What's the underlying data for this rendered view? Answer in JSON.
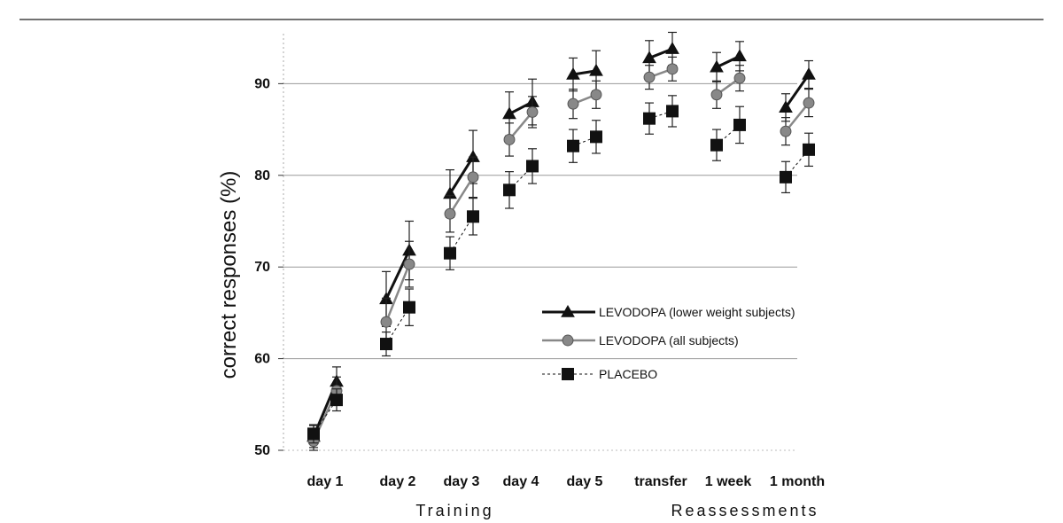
{
  "colors": {
    "lower_weight": "#111111",
    "all_subjects": "#888888",
    "placebo": "#111111",
    "grid": "#999999",
    "top_rule": "#444444"
  },
  "chart_data": {
    "type": "line",
    "ylabel": "correct responses (%)",
    "xlabel": "",
    "ylim": [
      50,
      97
    ],
    "y_ticks": [
      50,
      60,
      70,
      80,
      90
    ],
    "grid": true,
    "legend_position": "center-right",
    "categories": [
      "day 1",
      "day 2",
      "day 3",
      "day 4",
      "day 5",
      "transfer",
      "1 week",
      "1 month"
    ],
    "groups": [
      {
        "label": "Training",
        "from": 0,
        "to": 4
      },
      {
        "label": "Reassessments",
        "from": 5,
        "to": 7
      }
    ],
    "series": [
      {
        "name": "LEVODOPA (lower weight subjects)",
        "marker": "triangle",
        "color_key": "lower_weight",
        "points": [
          {
            "cat": 0,
            "pos": "a",
            "y": 51.5,
            "err": 1.2
          },
          {
            "cat": 0,
            "pos": "b",
            "y": 57.5,
            "err": 1.6
          },
          {
            "cat": 1,
            "pos": "a",
            "y": 66.5,
            "err": 3.0
          },
          {
            "cat": 1,
            "pos": "b",
            "y": 71.8,
            "err": 3.2
          },
          {
            "cat": 2,
            "pos": "a",
            "y": 78.0,
            "err": 2.6
          },
          {
            "cat": 2,
            "pos": "b",
            "y": 82.0,
            "err": 2.9
          },
          {
            "cat": 3,
            "pos": "a",
            "y": 86.7,
            "err": 2.4
          },
          {
            "cat": 3,
            "pos": "b",
            "y": 88.0,
            "err": 2.5
          },
          {
            "cat": 4,
            "pos": "a",
            "y": 91.0,
            "err": 1.8
          },
          {
            "cat": 4,
            "pos": "b",
            "y": 91.4,
            "err": 2.2
          },
          {
            "cat": 5,
            "pos": "a",
            "y": 92.8,
            "err": 1.9
          },
          {
            "cat": 5,
            "pos": "b",
            "y": 93.8,
            "err": 1.8
          },
          {
            "cat": 6,
            "pos": "a",
            "y": 91.8,
            "err": 1.6
          },
          {
            "cat": 6,
            "pos": "b",
            "y": 93.0,
            "err": 1.6
          },
          {
            "cat": 7,
            "pos": "a",
            "y": 87.4,
            "err": 1.5
          },
          {
            "cat": 7,
            "pos": "b",
            "y": 91.0,
            "err": 1.5
          }
        ]
      },
      {
        "name": "LEVODOPA (all subjects)",
        "marker": "circle",
        "color_key": "all_subjects",
        "points": [
          {
            "cat": 0,
            "pos": "a",
            "y": 51.0,
            "err": 1.0
          },
          {
            "cat": 0,
            "pos": "b",
            "y": 56.5,
            "err": 1.5
          },
          {
            "cat": 1,
            "pos": "a",
            "y": 64.0,
            "err": 2.6
          },
          {
            "cat": 1,
            "pos": "b",
            "y": 70.3,
            "err": 2.5
          },
          {
            "cat": 2,
            "pos": "a",
            "y": 75.8,
            "err": 2.0
          },
          {
            "cat": 2,
            "pos": "b",
            "y": 79.8,
            "err": 2.2
          },
          {
            "cat": 3,
            "pos": "a",
            "y": 83.9,
            "err": 1.8
          },
          {
            "cat": 3,
            "pos": "b",
            "y": 86.9,
            "err": 1.7
          },
          {
            "cat": 4,
            "pos": "a",
            "y": 87.8,
            "err": 1.6
          },
          {
            "cat": 4,
            "pos": "b",
            "y": 88.8,
            "err": 1.5
          },
          {
            "cat": 5,
            "pos": "a",
            "y": 90.7,
            "err": 1.3
          },
          {
            "cat": 5,
            "pos": "b",
            "y": 91.6,
            "err": 1.3
          },
          {
            "cat": 6,
            "pos": "a",
            "y": 88.8,
            "err": 1.5
          },
          {
            "cat": 6,
            "pos": "b",
            "y": 90.6,
            "err": 1.4
          },
          {
            "cat": 7,
            "pos": "a",
            "y": 84.8,
            "err": 1.5
          },
          {
            "cat": 7,
            "pos": "b",
            "y": 87.9,
            "err": 1.5
          }
        ]
      },
      {
        "name": "PLACEBO",
        "marker": "square",
        "color_key": "placebo",
        "points": [
          {
            "cat": 0,
            "pos": "a",
            "y": 51.8,
            "err": 1.0
          },
          {
            "cat": 0,
            "pos": "b",
            "y": 55.5,
            "err": 1.2
          },
          {
            "cat": 1,
            "pos": "a",
            "y": 61.6,
            "err": 1.3
          },
          {
            "cat": 1,
            "pos": "b",
            "y": 65.6,
            "err": 2.0
          },
          {
            "cat": 2,
            "pos": "a",
            "y": 71.5,
            "err": 1.8
          },
          {
            "cat": 2,
            "pos": "b",
            "y": 75.5,
            "err": 2.0
          },
          {
            "cat": 3,
            "pos": "a",
            "y": 78.4,
            "err": 2.0
          },
          {
            "cat": 3,
            "pos": "b",
            "y": 81.0,
            "err": 1.9
          },
          {
            "cat": 4,
            "pos": "a",
            "y": 83.2,
            "err": 1.8
          },
          {
            "cat": 4,
            "pos": "b",
            "y": 84.2,
            "err": 1.8
          },
          {
            "cat": 5,
            "pos": "a",
            "y": 86.2,
            "err": 1.7
          },
          {
            "cat": 5,
            "pos": "b",
            "y": 87.0,
            "err": 1.7
          },
          {
            "cat": 6,
            "pos": "a",
            "y": 83.3,
            "err": 1.7
          },
          {
            "cat": 6,
            "pos": "b",
            "y": 85.5,
            "err": 2.0
          },
          {
            "cat": 7,
            "pos": "a",
            "y": 79.8,
            "err": 1.7
          },
          {
            "cat": 7,
            "pos": "b",
            "y": 82.8,
            "err": 1.8
          }
        ]
      }
    ]
  }
}
